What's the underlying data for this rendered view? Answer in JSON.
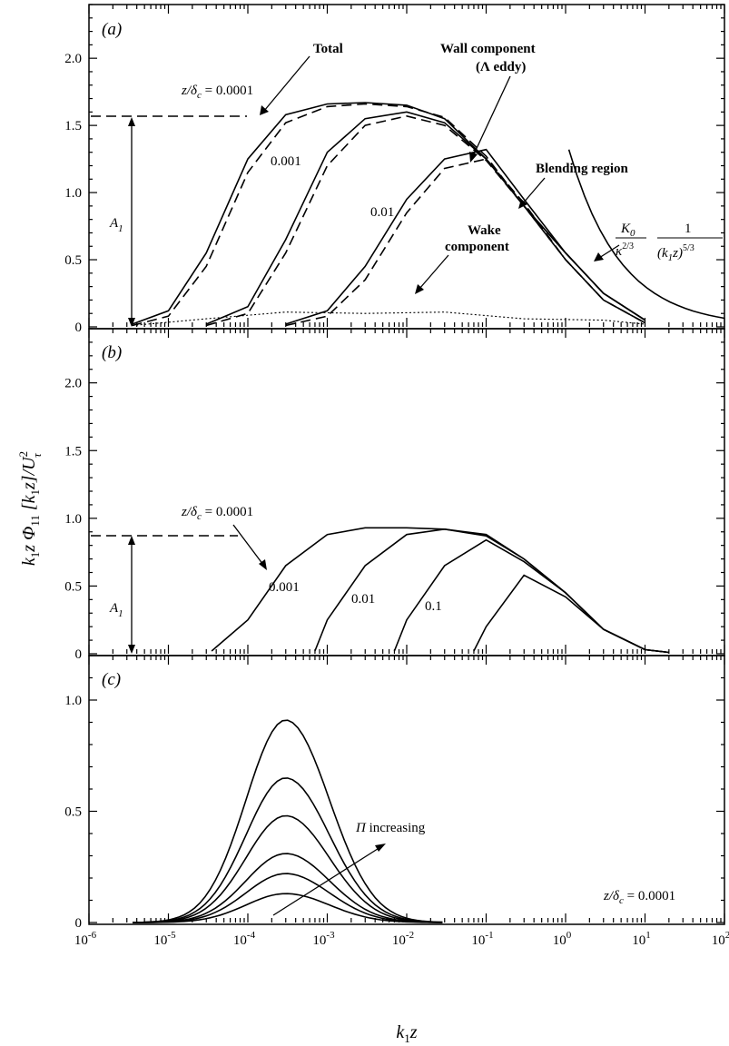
{
  "chart_data": [
    {
      "panel": "(a)",
      "type": "line",
      "x_scale": "log",
      "xlim": [
        1e-06,
        100
      ],
      "ylim": [
        0,
        2.4
      ],
      "yticks": [
        "0",
        "0.5",
        "1.0",
        "1.5",
        "2.0"
      ],
      "annotations": {
        "total": "Total",
        "wall_1": "Wall component",
        "wall_2": "(Λ eddy)",
        "blending": "Blending region",
        "wake_1": "Wake",
        "wake_2": "component",
        "z_prefix": "z/δ",
        "z_sub": "c",
        "z_val": " = 0.0001",
        "lab_001": "0.001",
        "lab_01": "0.01",
        "a1_sym": "A",
        "a1_sub": "1",
        "k0": "K",
        "k0_sub": "0",
        "kappa": "κ",
        "kappa_sup": "2/3",
        "one": "1",
        "k1z_open": "(k",
        "k1z_sub": "1",
        "k1z_close": "z)",
        "k1z_sup": "5/3"
      },
      "a1_level": 1.65,
      "series": [
        {
          "name": "z/δc = 0.0001",
          "x": [
            3.5e-06,
            1e-05,
            3e-05,
            0.0001,
            0.0003,
            0.001,
            0.003,
            0.01,
            0.03,
            0.1,
            0.3,
            1,
            3,
            10
          ],
          "total": [
            0.02,
            0.12,
            0.55,
            1.25,
            1.58,
            1.66,
            1.67,
            1.65,
            1.55,
            1.25,
            0.9,
            0.55,
            0.25,
            0.05
          ],
          "wall": [
            0.01,
            0.08,
            0.45,
            1.15,
            1.52,
            1.64,
            1.66,
            1.64,
            1.56,
            1.27,
            0.9,
            0.5,
            0.2,
            0.03
          ]
        },
        {
          "name": "0.001",
          "x": [
            3e-05,
            0.0001,
            0.0003,
            0.001,
            0.003,
            0.01,
            0.03,
            0.1,
            0.3,
            1,
            3,
            10
          ],
          "total": [
            0.02,
            0.15,
            0.65,
            1.3,
            1.55,
            1.6,
            1.52,
            1.25,
            0.9,
            0.55,
            0.25,
            0.05
          ],
          "wall": [
            0.01,
            0.1,
            0.55,
            1.2,
            1.5,
            1.57,
            1.5,
            1.24,
            0.9,
            0.5,
            0.2,
            0.03
          ]
        },
        {
          "name": "0.01",
          "x": [
            0.0003,
            0.001,
            0.003,
            0.01,
            0.03,
            0.1,
            0.3,
            1,
            3,
            10
          ],
          "total": [
            0.02,
            0.12,
            0.45,
            0.95,
            1.25,
            1.32,
            0.95,
            0.55,
            0.25,
            0.05
          ],
          "wall": [
            0.01,
            0.08,
            0.35,
            0.85,
            1.18,
            1.25,
            0.92,
            0.5,
            0.2,
            0.03
          ]
        }
      ],
      "wake": {
        "x": [
          3.5e-06,
          3e-05,
          0.0003,
          0.003,
          0.03,
          0.3,
          3,
          10
        ],
        "y": [
          0.01,
          0.06,
          0.11,
          0.1,
          0.11,
          0.06,
          0.05,
          0.02
        ]
      },
      "inertial": {
        "x": [
          1.1,
          100
        ],
        "y": [
          1.32,
          0.04
        ]
      }
    },
    {
      "panel": "(b)",
      "type": "line",
      "x_scale": "log",
      "xlim": [
        1e-06,
        100
      ],
      "ylim": [
        0,
        2.4
      ],
      "yticks": [
        "0",
        "0.5",
        "1.0",
        "1.5",
        "2.0"
      ],
      "a1_level": 0.93,
      "annotations": {
        "z_prefix": "z/δ",
        "z_sub": "c",
        "z_val": " = 0.0001",
        "lab_001": "0.001",
        "lab_01": "0.01",
        "lab_1": "0.1",
        "a1_sym": "A",
        "a1_sub": "1"
      },
      "series": [
        {
          "name": "z/δc = 0.0001",
          "x": [
            3.5e-05,
            0.0001,
            0.0003,
            0.001,
            0.003,
            0.01,
            0.03,
            0.1,
            0.3,
            1,
            3,
            10,
            20
          ],
          "y": [
            0.02,
            0.25,
            0.65,
            0.88,
            0.93,
            0.93,
            0.92,
            0.88,
            0.7,
            0.45,
            0.18,
            0.03,
            0.01
          ]
        },
        {
          "name": "0.001",
          "x": [
            0.0007,
            0.001,
            0.003,
            0.01,
            0.03,
            0.1,
            0.3,
            1,
            3,
            10,
            20
          ],
          "y": [
            0.02,
            0.25,
            0.65,
            0.88,
            0.92,
            0.87,
            0.7,
            0.45,
            0.18,
            0.03,
            0.01
          ]
        },
        {
          "name": "0.01",
          "x": [
            0.007,
            0.01,
            0.03,
            0.1,
            0.3,
            1,
            3,
            10,
            20
          ],
          "y": [
            0.02,
            0.25,
            0.65,
            0.84,
            0.68,
            0.45,
            0.18,
            0.03,
            0.01
          ]
        },
        {
          "name": "0.1",
          "x": [
            0.07,
            0.1,
            0.3,
            1,
            3,
            10,
            20
          ],
          "y": [
            0.02,
            0.2,
            0.58,
            0.42,
            0.18,
            0.03,
            0.01
          ]
        }
      ]
    },
    {
      "panel": "(c)",
      "type": "line",
      "x_scale": "log",
      "xlim": [
        1e-06,
        100
      ],
      "ylim": [
        0,
        1.2
      ],
      "yticks": [
        "0",
        "0.5",
        "1.0"
      ],
      "xticks": [
        "10",
        "10",
        "10",
        "10",
        "10",
        "10",
        "10",
        "10",
        "10"
      ],
      "xtick_exps": [
        "-6",
        "-5",
        "-4",
        "-3",
        "-2",
        "-1",
        "0",
        "1",
        "2"
      ],
      "annotations": {
        "pi": "Π",
        "pi_text": " increasing",
        "z_prefix": "z/δ",
        "z_sub": "c",
        "z_val": " = 0.0001"
      },
      "peak_x": 0.0003,
      "peaks": [
        0.13,
        0.22,
        0.31,
        0.48,
        0.65,
        0.91
      ]
    }
  ],
  "axes": {
    "ylabel": {
      "k": "k",
      "k_sub": "1",
      "z": "z ",
      "phi": "Φ",
      "phi_sub": "11",
      "bracket": " [k",
      "bracket_sub": "1",
      "bracket_close": "z]/U",
      "u_sup": "2",
      "u_sub": "τ"
    },
    "xlabel": {
      "k": "k",
      "k_sub": "1",
      "z": "z"
    }
  }
}
